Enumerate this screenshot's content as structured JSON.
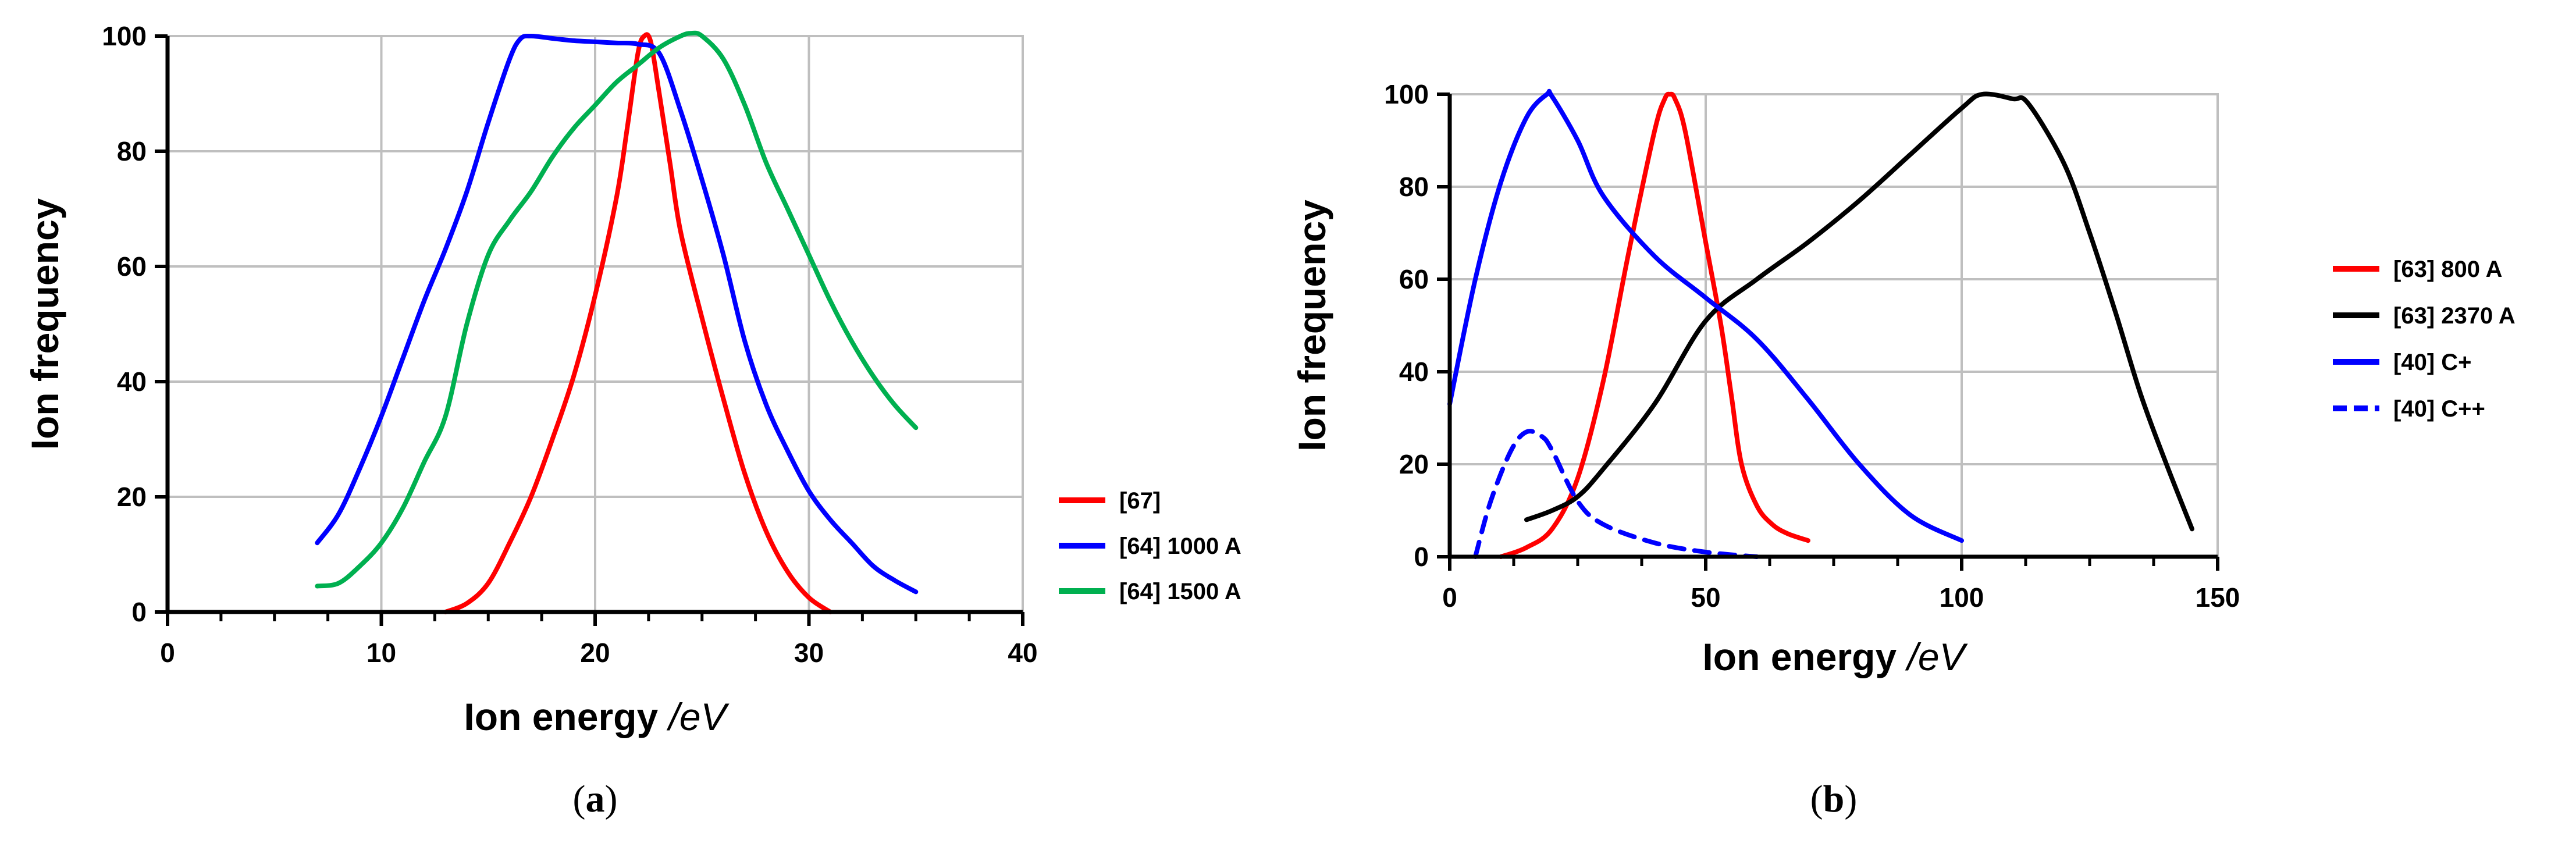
{
  "chart_data": [
    {
      "type": "line",
      "panel_label": "(a)",
      "xlabel_main": "Ion energy ",
      "xlabel_unit": "/eV",
      "ylabel": "Ion frequency",
      "xlim": [
        0,
        40
      ],
      "ylim": [
        0,
        100
      ],
      "xticks": [
        0,
        10,
        20,
        30,
        40
      ],
      "yticks": [
        0,
        20,
        40,
        60,
        80,
        100
      ],
      "grid": true,
      "legend_position": "right",
      "series": [
        {
          "name": "[67]",
          "color": "#ff0000",
          "dash": false,
          "x": [
            13,
            14,
            15,
            16,
            17,
            18,
            19,
            20,
            21,
            21.5,
            22,
            22.3,
            22.6,
            23,
            23.5,
            24,
            25,
            26,
            27,
            28,
            29,
            30,
            31
          ],
          "y": [
            0,
            1.5,
            5,
            12,
            20,
            30,
            41,
            55,
            72,
            84,
            97,
            100,
            99,
            90,
            78,
            66,
            51,
            37,
            24,
            14,
            7,
            2.5,
            0
          ]
        },
        {
          "name": "[64] 1000 A",
          "color": "#0000ff",
          "dash": false,
          "x": [
            7,
            8,
            9,
            10,
            11,
            12,
            13,
            14,
            15,
            16,
            16.5,
            17,
            18,
            19,
            20,
            21,
            22,
            23,
            24,
            25,
            26,
            27,
            28,
            29,
            30,
            31,
            32,
            33,
            34,
            35
          ],
          "y": [
            12,
            17,
            25,
            34,
            44,
            54,
            63,
            73,
            85,
            96,
            99.5,
            100,
            99.6,
            99.2,
            99,
            98.8,
            98.6,
            97,
            87,
            75,
            62,
            47,
            36,
            28,
            21,
            16,
            12,
            8,
            5.5,
            3.5
          ]
        },
        {
          "name": "[64] 1500 A",
          "color": "#00b050",
          "dash": false,
          "x": [
            7,
            8,
            9,
            10,
            11,
            12,
            13,
            14,
            15,
            16,
            17,
            18,
            19,
            20,
            21,
            22,
            23,
            24,
            24.5,
            25,
            26,
            27,
            28,
            29,
            30,
            31,
            32,
            33,
            34,
            35
          ],
          "y": [
            4.5,
            5,
            8,
            12,
            18,
            26,
            34,
            50,
            62,
            68,
            73,
            79,
            84,
            88,
            92,
            95,
            98,
            100,
            100.5,
            100,
            96,
            88,
            78,
            70,
            62,
            54,
            47,
            41,
            36,
            32
          ]
        }
      ]
    },
    {
      "type": "line",
      "panel_label": "(b)",
      "xlabel_main": "Ion energy ",
      "xlabel_unit": "/eV",
      "ylabel": "Ion frequency",
      "xlim": [
        0,
        150
      ],
      "ylim": [
        0,
        100
      ],
      "xticks": [
        0,
        50,
        100,
        150
      ],
      "yticks": [
        0,
        20,
        40,
        60,
        80,
        100
      ],
      "grid": true,
      "legend_position": "right",
      "series": [
        {
          "name": "[63] 800 A",
          "color": "#ff0000",
          "dash": false,
          "x": [
            10,
            15,
            20,
            25,
            30,
            35,
            40,
            42,
            43,
            44,
            46,
            50,
            53,
            55,
            57,
            60,
            63,
            66,
            70
          ],
          "y": [
            0,
            2,
            6,
            17,
            38,
            66,
            92,
            99,
            100,
            99,
            92,
            68,
            50,
            35,
            20,
            11,
            7,
            5,
            3.5
          ]
        },
        {
          "name": "[63] 2370 A",
          "color": "#000000",
          "dash": false,
          "x": [
            15,
            20,
            25,
            30,
            40,
            50,
            60,
            70,
            80,
            90,
            100,
            104,
            110,
            113,
            120,
            125,
            130,
            135,
            140,
            145
          ],
          "y": [
            8,
            10,
            13,
            19,
            33,
            51,
            60,
            68,
            77,
            87,
            97,
            100,
            99,
            98,
            85,
            70,
            53,
            35,
            20,
            6
          ]
        },
        {
          "name": "[40] C+",
          "color": "#0000ff",
          "dash": false,
          "x": [
            0,
            5,
            10,
            15,
            19,
            20,
            25,
            30,
            40,
            50,
            60,
            70,
            80,
            90,
            100
          ],
          "y": [
            33,
            60,
            81,
            95,
            100,
            99.5,
            90,
            78,
            65,
            56,
            47,
            34,
            20,
            9,
            3.5
          ]
        },
        {
          "name": "[40] C++",
          "color": "#0000ff",
          "dash": true,
          "x": [
            5,
            8,
            12,
            15,
            18,
            20,
            25,
            30,
            40,
            50,
            60
          ],
          "y": [
            0,
            12,
            23,
            27,
            26,
            23,
            12,
            7,
            3,
            1,
            0
          ]
        }
      ]
    }
  ]
}
